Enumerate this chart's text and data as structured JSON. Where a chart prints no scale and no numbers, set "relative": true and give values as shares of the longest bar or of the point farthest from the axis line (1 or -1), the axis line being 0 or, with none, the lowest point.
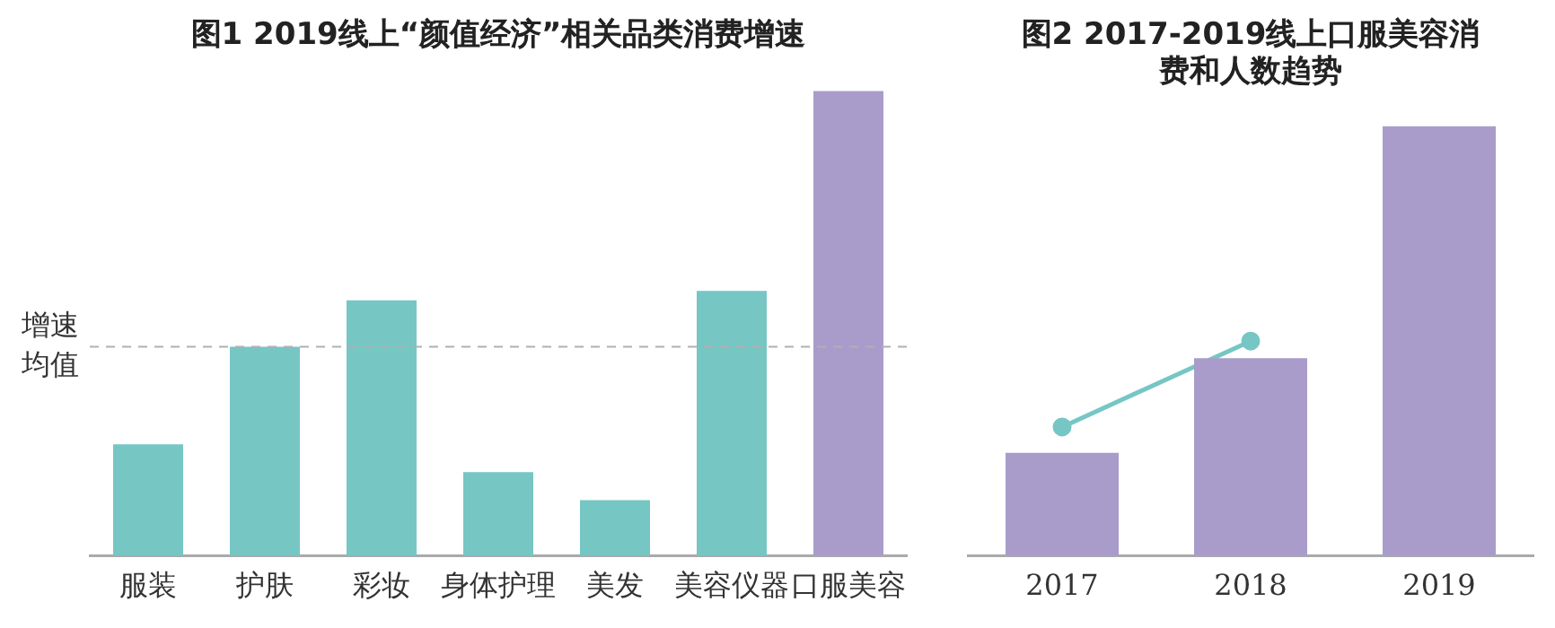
{
  "chart_data": [
    {
      "type": "bar",
      "title": "图1 2019线上“颜值经济”相关品类消费增速",
      "relative": true,
      "grid": false,
      "legend": false,
      "categories": [
        "服装",
        "护肤",
        "彩妆",
        "身体护理",
        "美发",
        "美容仪器",
        "口服美容"
      ],
      "values": [
        0.24,
        0.45,
        0.55,
        0.18,
        0.12,
        0.57,
        1.0
      ],
      "colors": [
        "#76c6c4",
        "#76c6c4",
        "#76c6c4",
        "#76c6c4",
        "#76c6c4",
        "#76c6c4",
        "#a99ccb"
      ],
      "ref_lines": [
        {
          "axis": "y",
          "value": 0.45,
          "label": "增速均值",
          "color": "#b0b0b0",
          "line_style": "dashed"
        }
      ]
    },
    {
      "type": "bar",
      "title": "图2 2017-2019线上口服美容消费和人数趋势",
      "relative": true,
      "grid": false,
      "legend": false,
      "categories": [
        "2017",
        "2018",
        "2019"
      ],
      "series": [
        {
          "type": "bar",
          "color": "#a99ccb",
          "values": [
            0.24,
            0.46,
            1.0
          ]
        },
        {
          "type": "line",
          "color": "#76c6c4",
          "values": [
            0.3,
            0.5,
            null
          ],
          "marker": "circle",
          "line_style": "solid"
        }
      ]
    }
  ]
}
